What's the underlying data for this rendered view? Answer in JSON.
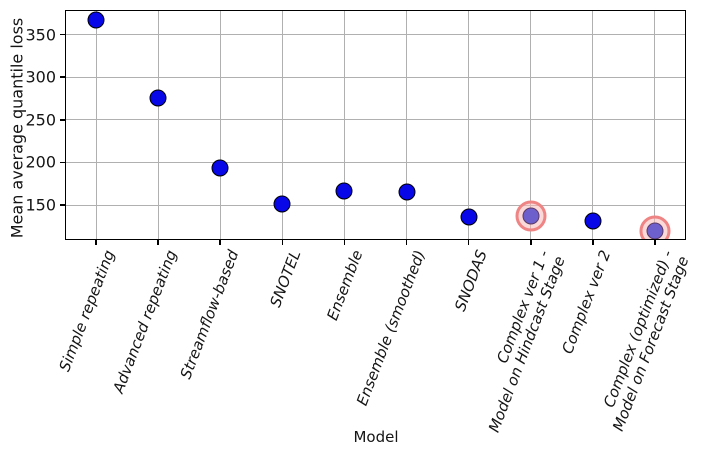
{
  "figure": {
    "background": "#ffffff"
  },
  "chart_data": {
    "type": "scatter",
    "title": "",
    "xlabel": "Model",
    "ylabel": "Mean average quantile loss",
    "categories": [
      "Simple repeating",
      "Advanced repeating",
      "Streamflow-based",
      "SNOTEL",
      "Ensemble",
      "Ensemble (smoothed)",
      "SNODAS",
      "Complex ver 1 -\nModel on Hindcast Stage",
      "Complex ver 2",
      "Complex (optimized) -\nModel on Forecast Stage"
    ],
    "values": [
      367,
      276,
      193,
      151,
      167,
      165,
      136,
      137,
      131,
      120
    ],
    "highlighted_indices": [
      7,
      9
    ],
    "yticks": [
      150,
      200,
      250,
      300,
      350
    ],
    "ylim": [
      109,
      379
    ],
    "grid": true,
    "legend_position": "none",
    "colors": {
      "marker_fill": "#0707e8",
      "marker_edge": "#000000",
      "highlight_marker_fill": "#6e60cc",
      "highlight_marker_edge": "#5c3b66",
      "highlight_ring_fill": "rgba(250,185,185,0.55)",
      "highlight_ring_edge": "#ef8484",
      "grid_color": "#b0b0b0",
      "spine_color": "#000000"
    }
  }
}
